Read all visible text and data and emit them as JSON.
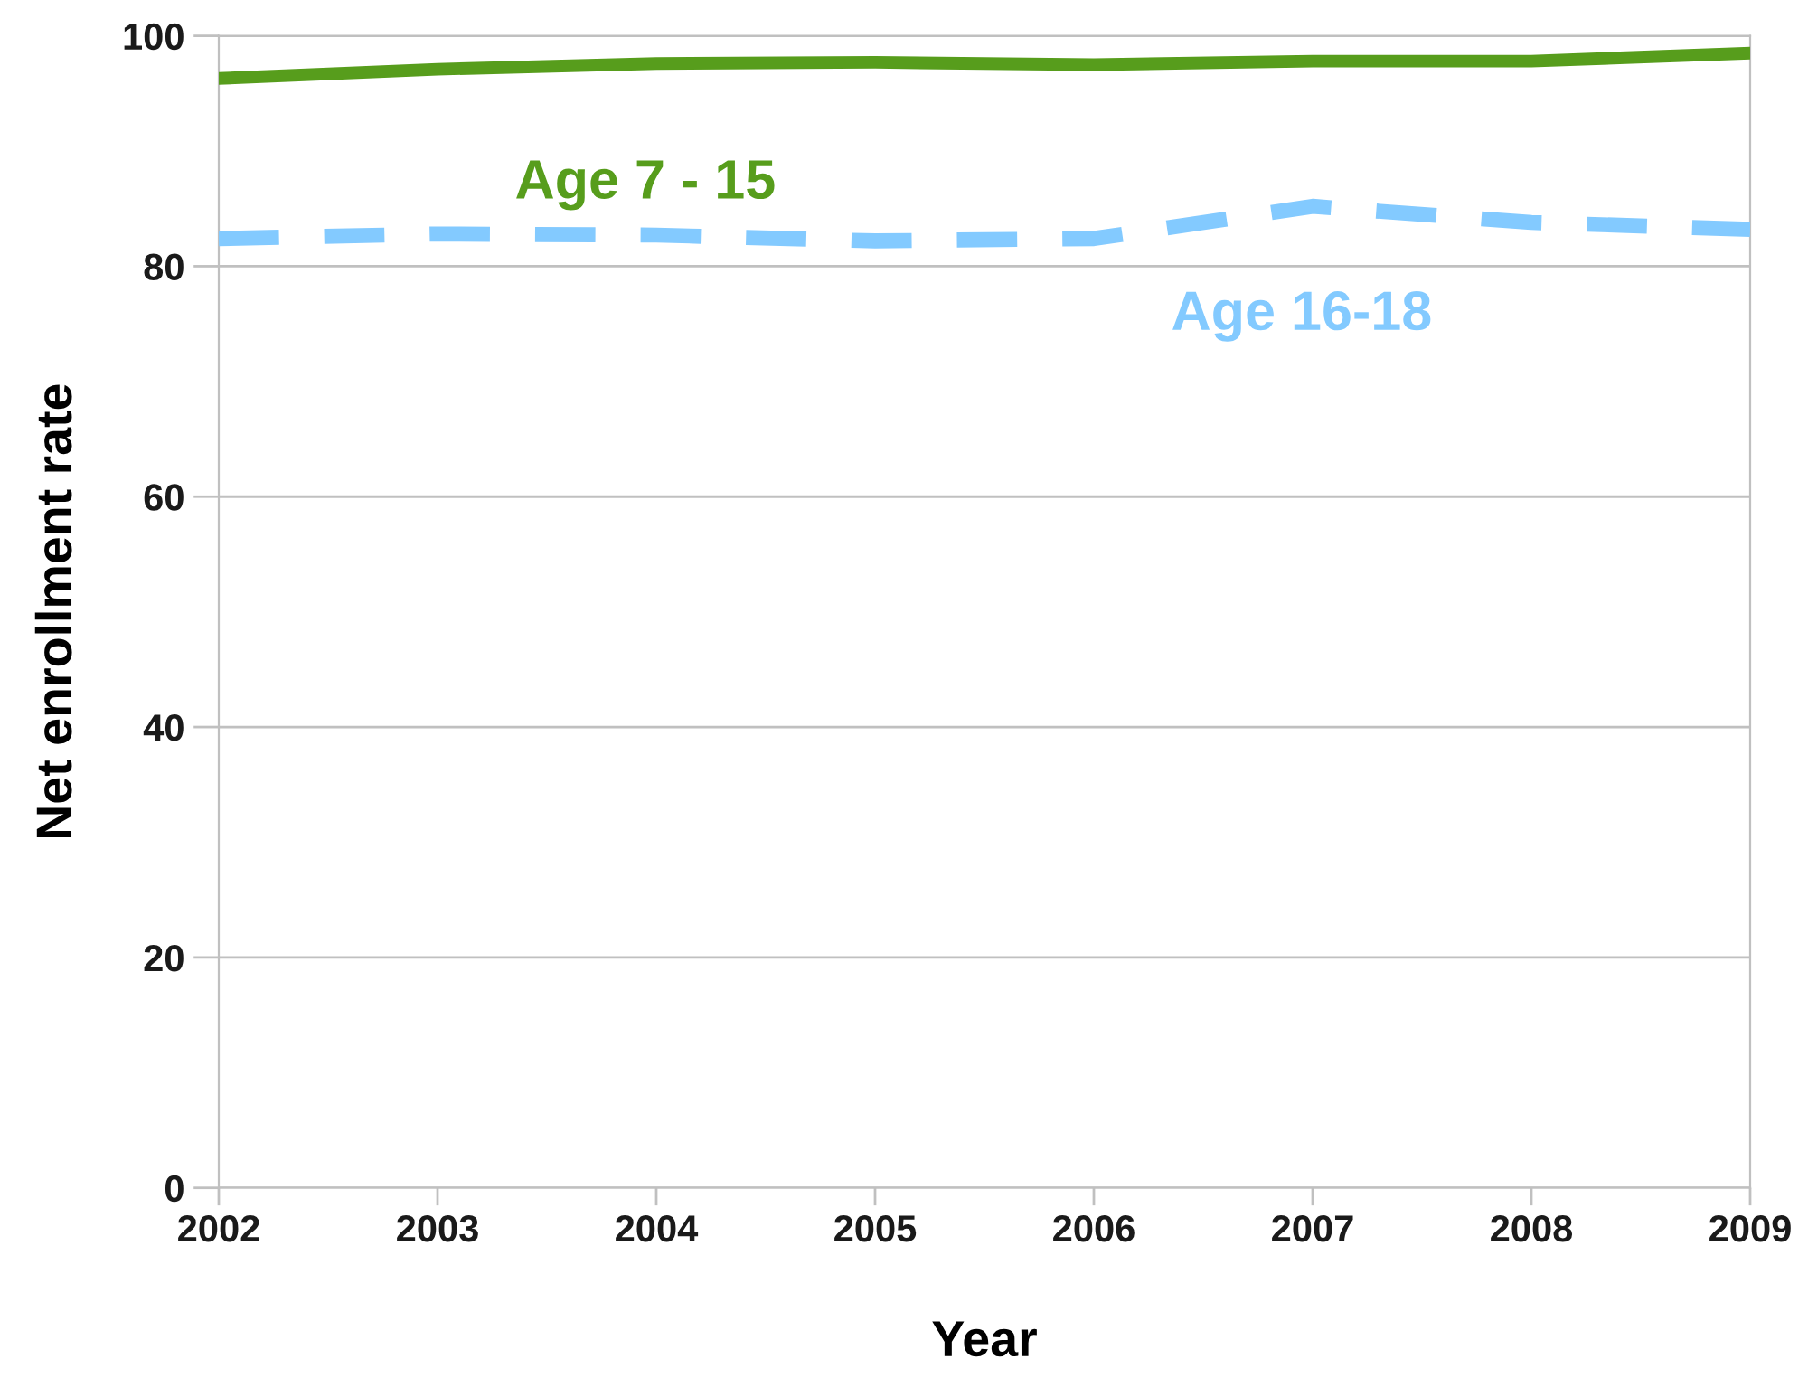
{
  "chart_data": {
    "type": "line",
    "xlabel": "Year",
    "ylabel": "Net enrollment rate",
    "x": [
      2002,
      2003,
      2004,
      2005,
      2006,
      2007,
      2008,
      2009
    ],
    "series": [
      {
        "name": "Age 7 - 15",
        "color": "#579d1c",
        "line_style": "solid",
        "values": [
          96.3,
          97.1,
          97.6,
          97.7,
          97.5,
          97.8,
          97.8,
          98.5
        ]
      },
      {
        "name": "Age 16-18",
        "color": "#83caff",
        "line_style": "dashed",
        "values": [
          82.4,
          82.8,
          82.7,
          82.2,
          82.4,
          85.2,
          83.8,
          83.2
        ]
      }
    ],
    "xlim": [
      2002,
      2009
    ],
    "xticks": [
      2002,
      2003,
      2004,
      2005,
      2006,
      2007,
      2008,
      2009
    ],
    "ylim": [
      0,
      100
    ],
    "yticks": [
      0,
      20,
      40,
      60,
      80,
      100
    ],
    "grid": "y",
    "legend": false,
    "marker": "none"
  }
}
